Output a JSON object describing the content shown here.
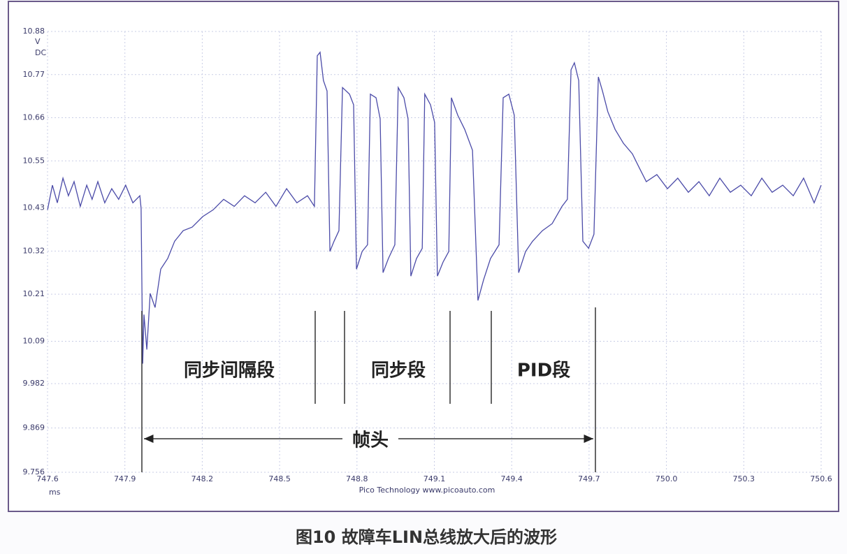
{
  "chart_data": {
    "type": "line",
    "caption": "图10 故障车LIN总线放大后的波形",
    "y_unit": "V",
    "y_coupling": "DC",
    "x_unit": "ms",
    "footer": "Pico Technology   www.picoauto.com",
    "annotations": [
      "同步间隔段",
      "同步段",
      "PID段",
      "帧头"
    ],
    "xlim": [
      747.6,
      750.6
    ],
    "xticks": [
      747.6,
      747.9,
      748.2,
      748.5,
      748.8,
      749.1,
      749.4,
      749.7,
      {
        "value": 750,
        "label": "750.0"
      },
      750.3,
      750.6
    ],
    "ylim": [
      9.756,
      10.88
    ],
    "yticks": [
      9.756,
      9.869,
      9.982,
      10.09,
      10.21,
      10.32,
      10.43,
      10.55,
      10.66,
      10.77,
      10.88
    ],
    "grid": true,
    "x": [
      747.6,
      747.619,
      747.638,
      747.66,
      747.681,
      747.703,
      747.727,
      747.752,
      747.773,
      747.795,
      747.822,
      747.849,
      747.876,
      747.903,
      747.931,
      747.958,
      747.963,
      747.969,
      747.974,
      747.985,
      747.998,
      748.017,
      748.039,
      748.066,
      748.093,
      748.126,
      748.161,
      748.202,
      748.242,
      748.283,
      748.324,
      748.364,
      748.405,
      748.446,
      748.486,
      748.527,
      748.567,
      748.608,
      748.635,
      748.646,
      748.657,
      748.67,
      748.684,
      748.695,
      748.711,
      748.73,
      748.744,
      748.771,
      748.787,
      748.798,
      748.82,
      748.841,
      748.852,
      748.874,
      748.89,
      748.901,
      748.922,
      748.947,
      748.96,
      748.982,
      748.998,
      749.009,
      749.031,
      749.053,
      749.063,
      749.085,
      749.101,
      749.112,
      749.134,
      749.156,
      749.166,
      749.191,
      749.218,
      749.248,
      749.269,
      749.291,
      749.318,
      749.351,
      749.367,
      749.389,
      749.41,
      749.427,
      749.454,
      749.481,
      749.519,
      749.557,
      749.595,
      749.616,
      749.63,
      749.643,
      749.66,
      749.676,
      749.698,
      749.719,
      749.736,
      749.752,
      749.773,
      749.801,
      749.833,
      749.868,
      749.895,
      749.922,
      749.963,
      750.004,
      750.044,
      750.085,
      750.126,
      750.166,
      750.207,
      750.248,
      750.288,
      750.329,
      750.37,
      750.41,
      750.451,
      750.492,
      750.532,
      750.573,
      750.6
    ],
    "series": [
      {
        "color": "#4b4ba8",
        "values": [
          10.425,
          10.488,
          10.443,
          10.506,
          10.461,
          10.497,
          10.434,
          10.488,
          10.452,
          10.497,
          10.443,
          10.479,
          10.452,
          10.488,
          10.443,
          10.461,
          10.429,
          10.033,
          10.158,
          10.069,
          10.212,
          10.176,
          10.274,
          10.301,
          10.345,
          10.372,
          10.381,
          10.408,
          10.425,
          10.452,
          10.434,
          10.461,
          10.443,
          10.47,
          10.434,
          10.479,
          10.443,
          10.461,
          10.434,
          10.818,
          10.827,
          10.755,
          10.728,
          10.319,
          10.345,
          10.372,
          10.737,
          10.72,
          10.693,
          10.274,
          10.319,
          10.336,
          10.72,
          10.711,
          10.657,
          10.265,
          10.301,
          10.336,
          10.737,
          10.711,
          10.657,
          10.256,
          10.301,
          10.327,
          10.72,
          10.693,
          10.648,
          10.256,
          10.292,
          10.319,
          10.711,
          10.666,
          10.63,
          10.577,
          10.194,
          10.247,
          10.301,
          10.336,
          10.711,
          10.72,
          10.666,
          10.265,
          10.319,
          10.345,
          10.372,
          10.39,
          10.434,
          10.452,
          10.782,
          10.8,
          10.755,
          10.345,
          10.327,
          10.363,
          10.764,
          10.728,
          10.675,
          10.63,
          10.595,
          10.568,
          10.532,
          10.497,
          10.515,
          10.479,
          10.506,
          10.47,
          10.497,
          10.461,
          10.506,
          10.47,
          10.488,
          10.461,
          10.506,
          10.47,
          10.488,
          10.461,
          10.506,
          10.443,
          10.488
        ]
      }
    ]
  }
}
